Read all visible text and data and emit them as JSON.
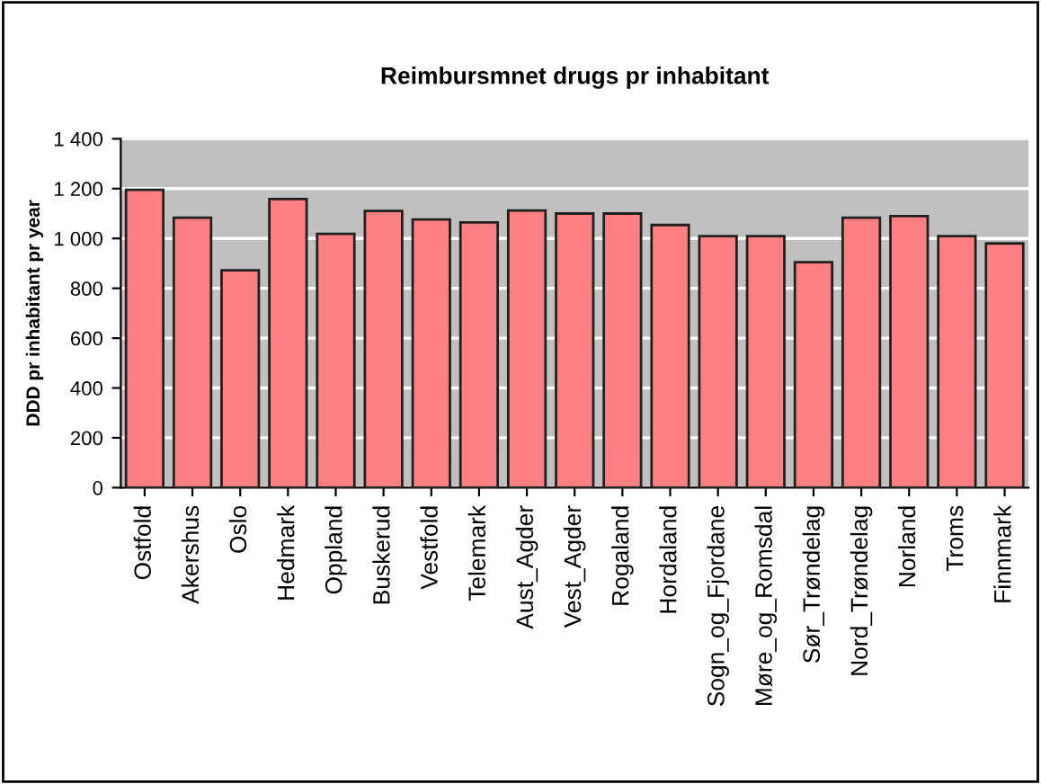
{
  "chart_data": {
    "type": "bar",
    "title": "Reimbursmnet drugs pr inhabitant",
    "ylabel": "DDD pr inhabitant pr year",
    "categories": [
      "Ostfold",
      "Akershus",
      "Oslo",
      "Hedmark",
      "Oppland",
      "Buskerud",
      "Vestfold",
      "Telemark",
      "Aust_Agder",
      "Vest_Agder",
      "Rogaland",
      "Hordaland",
      "Sogn_og_Fjordane",
      "Møre_og_Romsdal",
      "Sør_Trøndelag",
      "Nord_Trøndelag",
      "Norland",
      "Troms",
      "Finnmark"
    ],
    "values": [
      1195,
      1083,
      872,
      1158,
      1018,
      1110,
      1076,
      1064,
      1112,
      1100,
      1100,
      1054,
      1009,
      1009,
      905,
      1083,
      1090,
      1009,
      980
    ],
    "color": "#ff8080",
    "ylim": [
      0,
      1400
    ],
    "yticks": [
      0,
      {
        "value": 200,
        "label": "200"
      },
      {
        "value": 400,
        "label": "400"
      },
      {
        "value": 600,
        "label": "600"
      },
      {
        "value": 800,
        "label": "800"
      },
      {
        "value": 1000,
        "label": "1 000"
      },
      {
        "value": 1200,
        "label": "1 200"
      },
      {
        "value": 1400,
        "label": "1 400"
      }
    ],
    "grid": "y"
  }
}
